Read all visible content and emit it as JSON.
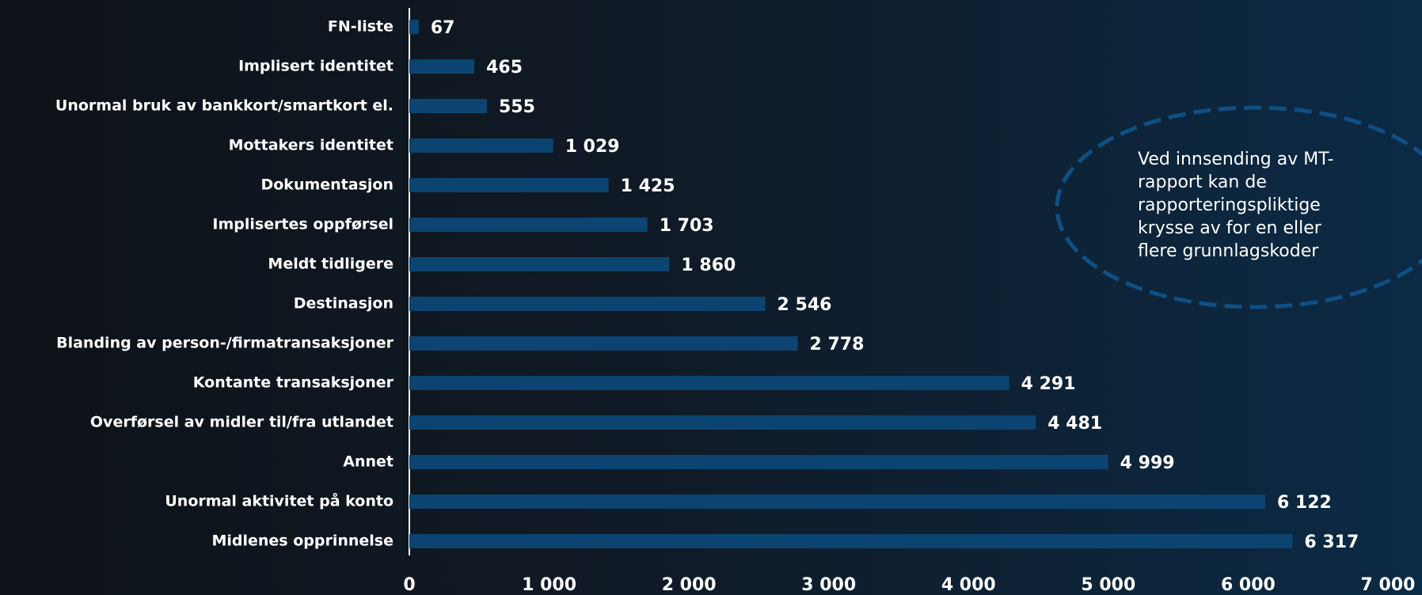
{
  "chart_data": {
    "type": "bar",
    "orientation": "horizontal",
    "categories": [
      "FN-liste",
      "Implisert identitet",
      "Unormal bruk av bankkort/smartkort el.",
      "Mottakers identitet",
      "Dokumentasjon",
      "Implisertes oppførsel",
      "Meldt tidligere",
      "Destinasjon",
      "Blanding av person-/firmatransaksjoner",
      "Kontante transaksjoner",
      "Overførsel av midler til/fra utlandet",
      "Annet",
      "Unormal aktivitet på konto",
      "Midlenes opprinnelse"
    ],
    "values": [
      67,
      465,
      555,
      1029,
      1425,
      1703,
      1860,
      2546,
      2778,
      4291,
      4481,
      4999,
      6122,
      6317
    ],
    "value_labels": [
      "67",
      "465",
      "555",
      "1 029",
      "1 425",
      "1 703",
      "1 860",
      "2 546",
      "2 778",
      "4 291",
      "4 481",
      "4 999",
      "6 122",
      "6 317"
    ],
    "color": "#0b4470",
    "xlim": [
      0,
      7000
    ],
    "xticks": [
      0,
      {
        "value": 1000,
        "label": "1 000"
      },
      {
        "value": 2000,
        "label": "2 000"
      },
      {
        "value": 3000,
        "label": "3 000"
      },
      {
        "value": 4000,
        "label": "4 000"
      },
      {
        "value": 5000,
        "label": "5 000"
      },
      {
        "value": 6000,
        "label": "6 000"
      },
      {
        "value": 7000,
        "label": "7 000"
      }
    ],
    "grid": false,
    "annotation": [
      "Ved innsending av MT-",
      "rapport kan de",
      "rapporteringspliktige",
      "krysse av for en eller",
      "flere grunnlagskoder"
    ]
  }
}
